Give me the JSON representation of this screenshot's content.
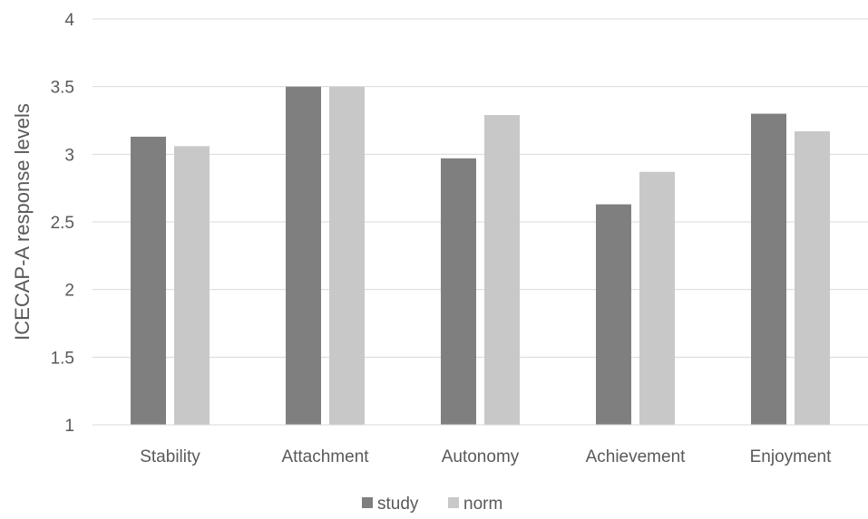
{
  "chart_data": {
    "type": "bar",
    "categories": [
      "Stability",
      "Attachment",
      "Autonomy",
      "Achievement",
      "Enjoyment"
    ],
    "series": [
      {
        "name": "study",
        "color": "#7f7f7f",
        "values": [
          3.13,
          3.5,
          2.97,
          2.63,
          3.3
        ]
      },
      {
        "name": "norm",
        "color": "#c8c8c8",
        "values": [
          3.06,
          3.5,
          3.29,
          2.87,
          3.17
        ]
      }
    ],
    "title": "",
    "xlabel": "",
    "ylabel": "ICECAP-A response levels",
    "ylim": [
      1,
      4
    ],
    "yticks": [
      "1",
      "1.5",
      "2",
      "2.5",
      "3",
      "3.5",
      "4"
    ],
    "grid": true,
    "legend_position": "bottom"
  }
}
